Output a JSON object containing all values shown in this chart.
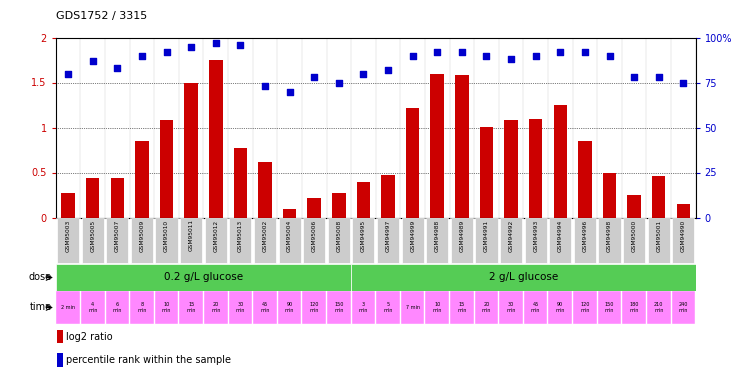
{
  "title": "GDS1752 / 3315",
  "samples": [
    "GSM95003",
    "GSM95005",
    "GSM95007",
    "GSM95009",
    "GSM95010",
    "GSM95011",
    "GSM95012",
    "GSM95013",
    "GSM95002",
    "GSM95004",
    "GSM95006",
    "GSM95008",
    "GSM94995",
    "GSM94997",
    "GSM94999",
    "GSM94988",
    "GSM94989",
    "GSM94991",
    "GSM94992",
    "GSM94993",
    "GSM94994",
    "GSM94996",
    "GSM94998",
    "GSM95000",
    "GSM95001",
    "GSM94990"
  ],
  "log2_ratio": [
    0.27,
    0.44,
    0.44,
    0.85,
    1.08,
    1.5,
    1.75,
    0.77,
    0.62,
    0.1,
    0.22,
    0.27,
    0.4,
    0.47,
    1.22,
    1.6,
    1.58,
    1.01,
    1.08,
    1.09,
    1.25,
    0.85,
    0.5,
    0.25,
    0.46,
    0.15
  ],
  "percentile": [
    80,
    87,
    83,
    90,
    92,
    95,
    97,
    96,
    73,
    70,
    78,
    75,
    80,
    82,
    90,
    92,
    92,
    90,
    88,
    90,
    92,
    92,
    90,
    78,
    78,
    75
  ],
  "dose_labels": [
    "0.2 g/L glucose",
    "2 g/L glucose"
  ],
  "dose_split": 12,
  "time_labels_all": [
    "2 min",
    "4\nmin",
    "6\nmin",
    "8\nmin",
    "10\nmin",
    "15\nmin",
    "20\nmin",
    "30\nmin",
    "45\nmin",
    "90\nmin",
    "120\nmin",
    "150\nmin",
    "3\nmin",
    "5\nmin",
    "7 min",
    "10\nmin",
    "15\nmin",
    "20\nmin",
    "30\nmin",
    "45\nmin",
    "90\nmin",
    "120\nmin",
    "150\nmin",
    "180\nmin",
    "210\nmin",
    "240\nmin"
  ],
  "bar_color": "#cc0000",
  "dot_color": "#0000cc",
  "dose_color": "#55cc55",
  "time_color": "#ff88ff",
  "sample_bg_color": "#cccccc",
  "ylim_left": [
    0,
    2
  ],
  "ylim_right": [
    0,
    100
  ],
  "yticks_left": [
    0,
    0.5,
    1.0,
    1.5,
    2.0
  ],
  "yticks_right": [
    0,
    25,
    50,
    75,
    100
  ],
  "grid_values": [
    0.5,
    1.0,
    1.5
  ],
  "legend_items": [
    "log2 ratio",
    "percentile rank within the sample"
  ]
}
